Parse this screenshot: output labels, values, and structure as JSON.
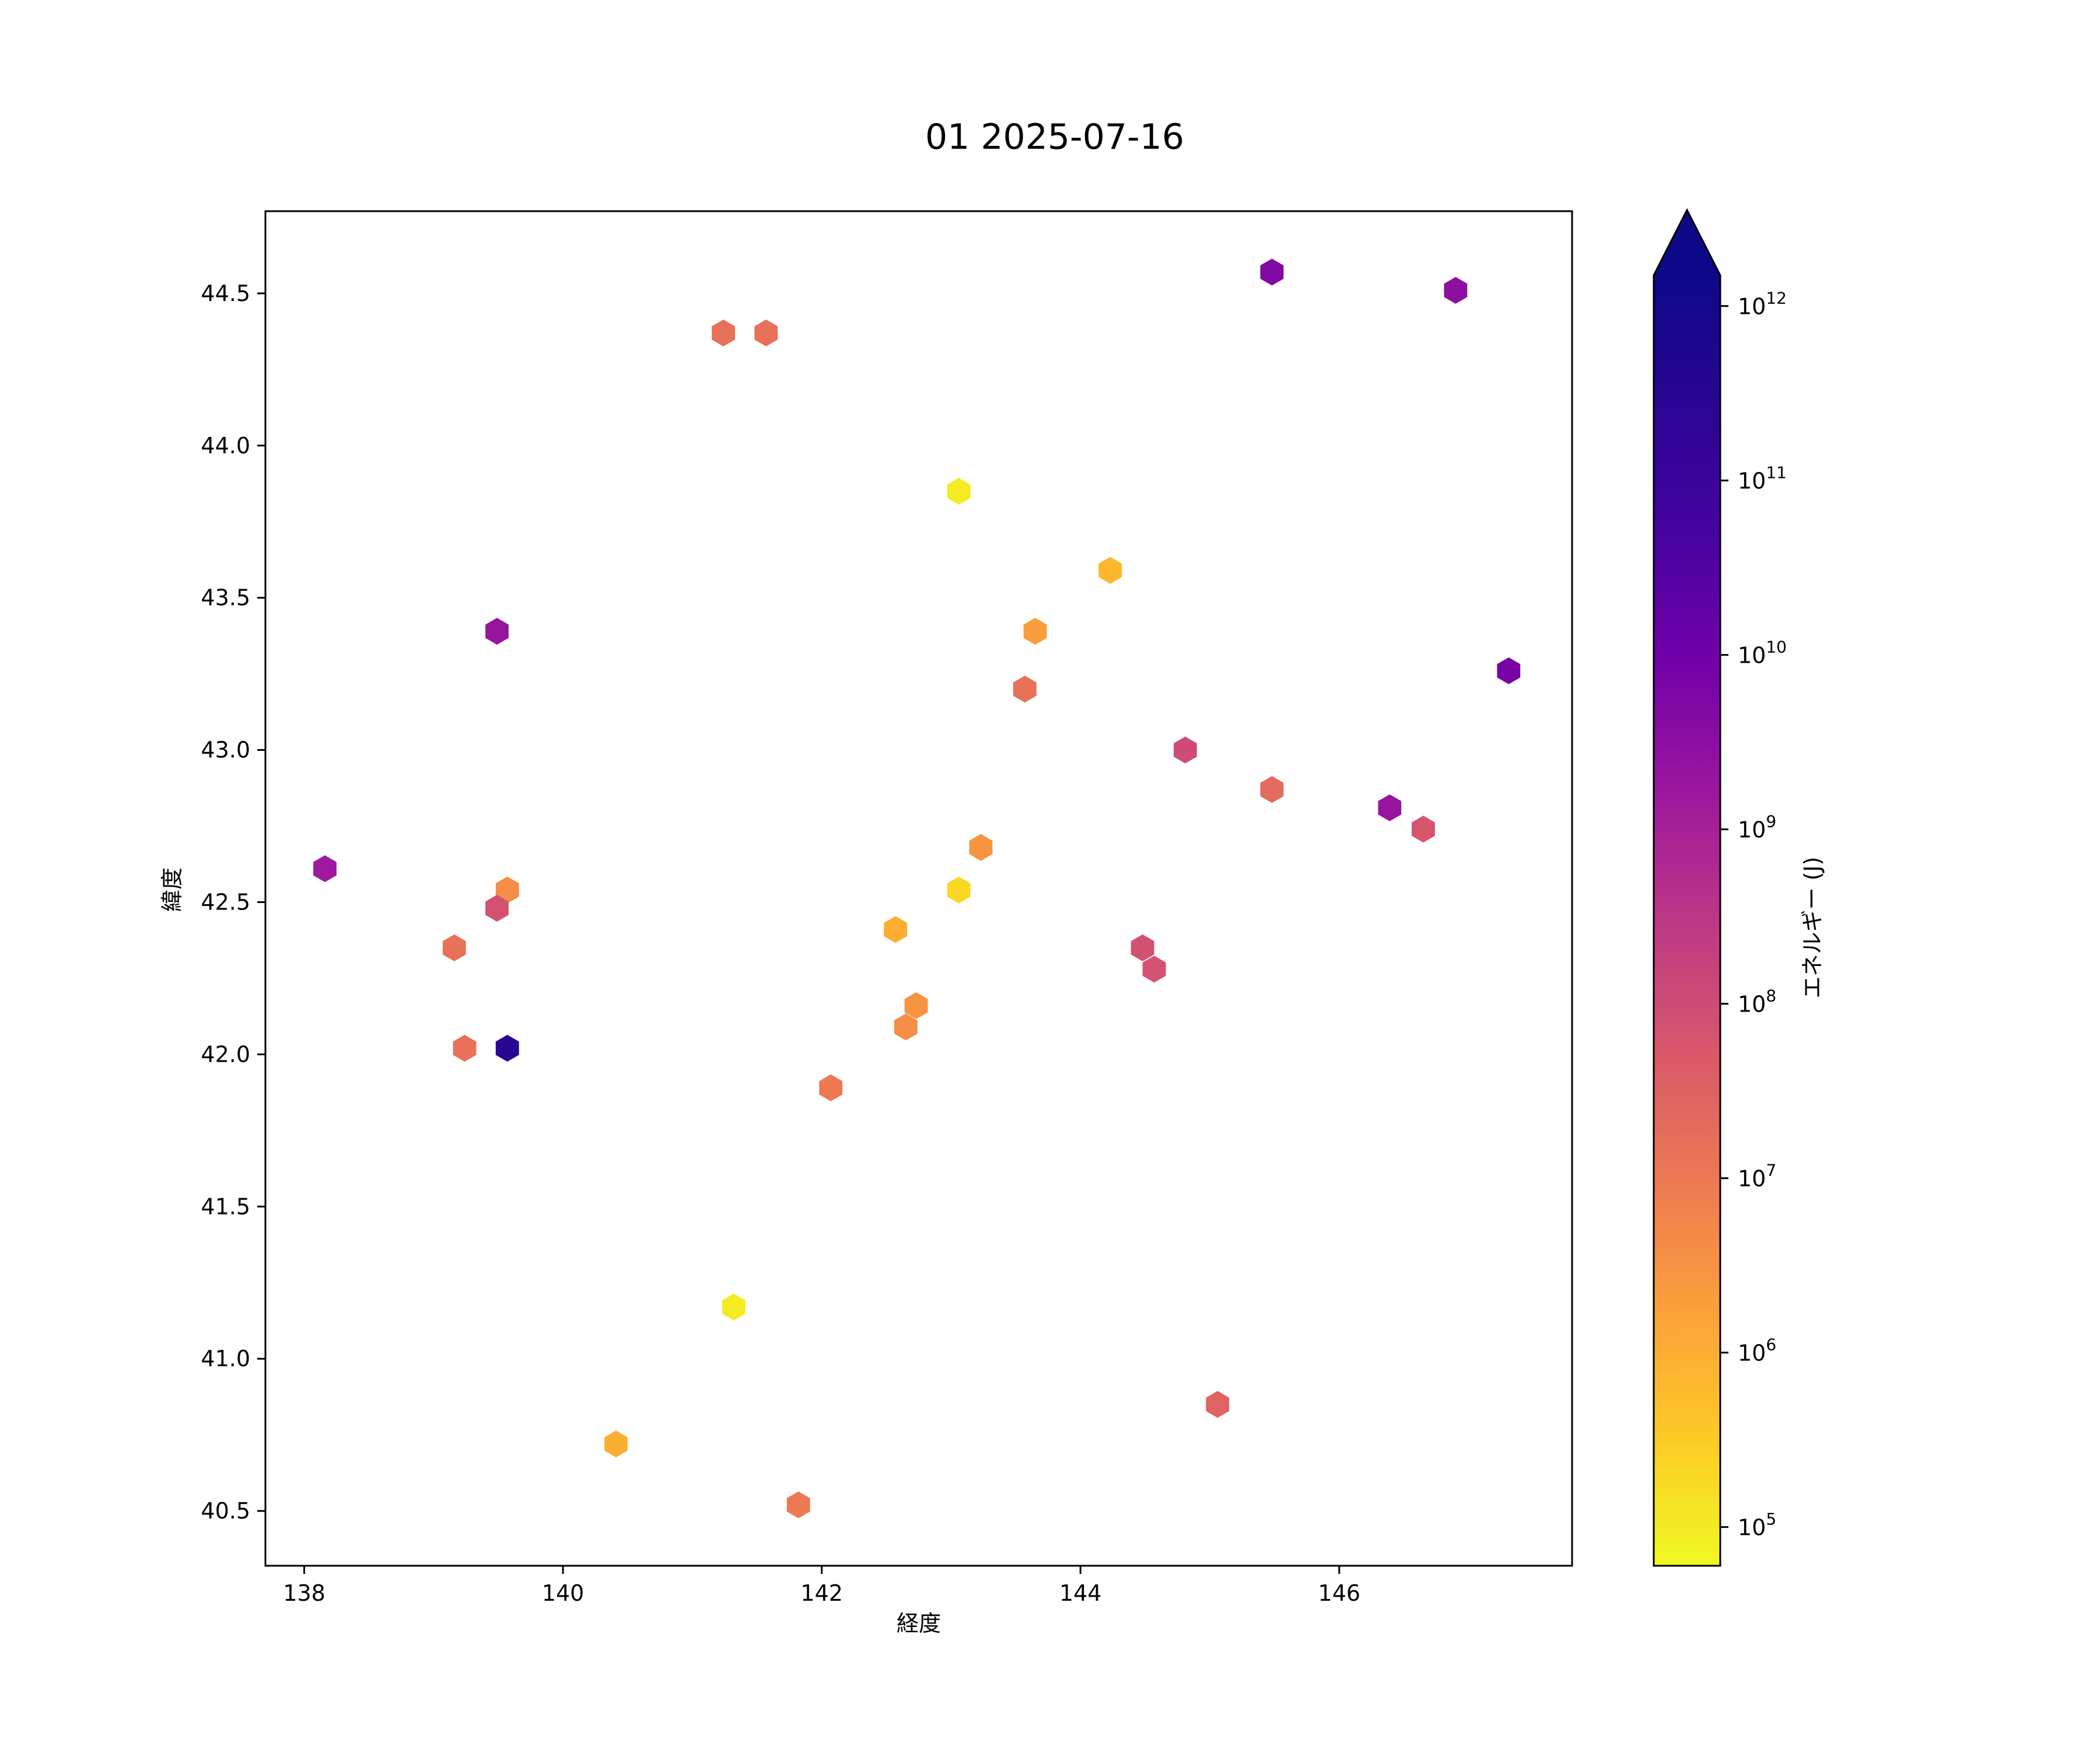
{
  "chart_data": {
    "type": "scatter",
    "marker": "hexagon",
    "title": "01 2025-07-16",
    "xlabel": "経度",
    "ylabel": "緯度",
    "xlim": [
      137.7,
      147.8
    ],
    "ylim": [
      40.32,
      44.77
    ],
    "x_ticks": [
      138,
      140,
      142,
      144,
      146
    ],
    "y_ticks": [
      40.5,
      41.0,
      41.5,
      42.0,
      42.5,
      43.0,
      43.5,
      44.0,
      44.5
    ],
    "x_tick_labels": [
      "138",
      "140",
      "142",
      "144",
      "146"
    ],
    "y_tick_labels": [
      "40.5",
      "41.0",
      "41.5",
      "42.0",
      "42.5",
      "43.0",
      "43.5",
      "44.0",
      "44.5"
    ],
    "grid": false,
    "colorbar": {
      "label": "エネルギー (J)",
      "scale": "log",
      "colormap": "plasma_r",
      "extend": "max",
      "range": [
        60000,
        1500000000000
      ],
      "tick_exponents": [
        5,
        6,
        7,
        8,
        9,
        10,
        11,
        12
      ],
      "tick_base": "10",
      "tick_superscripts": [
        "5",
        "6",
        "7",
        "8",
        "9",
        "10",
        "11",
        "12"
      ]
    },
    "points": [
      {
        "x": 145.48,
        "y": 44.57,
        "energy": 5000000000.0
      },
      {
        "x": 146.9,
        "y": 44.51,
        "energy": 3000000000.0
      },
      {
        "x": 141.24,
        "y": 44.37,
        "energy": 15000000.0
      },
      {
        "x": 141.57,
        "y": 44.37,
        "energy": 15000000.0
      },
      {
        "x": 143.06,
        "y": 43.85,
        "energy": 100000.0
      },
      {
        "x": 144.23,
        "y": 43.59,
        "energy": 700000.0
      },
      {
        "x": 143.65,
        "y": 43.39,
        "energy": 2000000.0
      },
      {
        "x": 139.49,
        "y": 43.39,
        "energy": 2000000000.0
      },
      {
        "x": 147.31,
        "y": 43.26,
        "energy": 7000000000.0
      },
      {
        "x": 143.57,
        "y": 43.2,
        "energy": 15000000.0
      },
      {
        "x": 144.81,
        "y": 43.0,
        "energy": 100000000.0
      },
      {
        "x": 145.48,
        "y": 42.87,
        "energy": 20000000.0
      },
      {
        "x": 146.39,
        "y": 42.81,
        "energy": 2000000000.0
      },
      {
        "x": 146.65,
        "y": 42.74,
        "energy": 60000000.0
      },
      {
        "x": 143.23,
        "y": 42.68,
        "energy": 3000000.0
      },
      {
        "x": 138.16,
        "y": 42.61,
        "energy": 1500000000.0
      },
      {
        "x": 143.06,
        "y": 42.54,
        "energy": 200000.0
      },
      {
        "x": 139.57,
        "y": 42.54,
        "energy": 4000000.0
      },
      {
        "x": 139.49,
        "y": 42.48,
        "energy": 70000000.0
      },
      {
        "x": 142.57,
        "y": 42.41,
        "energy": 1000000.0
      },
      {
        "x": 139.16,
        "y": 42.35,
        "energy": 15000000.0
      },
      {
        "x": 144.48,
        "y": 42.35,
        "energy": 80000000.0
      },
      {
        "x": 144.57,
        "y": 42.28,
        "energy": 70000000.0
      },
      {
        "x": 142.73,
        "y": 42.16,
        "energy": 3000000.0
      },
      {
        "x": 142.65,
        "y": 42.09,
        "energy": 4000000.0
      },
      {
        "x": 139.24,
        "y": 42.02,
        "energy": 15000000.0
      },
      {
        "x": 139.57,
        "y": 42.02,
        "energy": 300000000000.0
      },
      {
        "x": 142.07,
        "y": 41.89,
        "energy": 10000000.0
      },
      {
        "x": 141.32,
        "y": 41.17,
        "energy": 100000.0
      },
      {
        "x": 145.06,
        "y": 40.85,
        "energy": 30000000.0
      },
      {
        "x": 140.41,
        "y": 40.72,
        "energy": 1000000.0
      },
      {
        "x": 141.82,
        "y": 40.52,
        "energy": 10000000.0
      }
    ]
  }
}
